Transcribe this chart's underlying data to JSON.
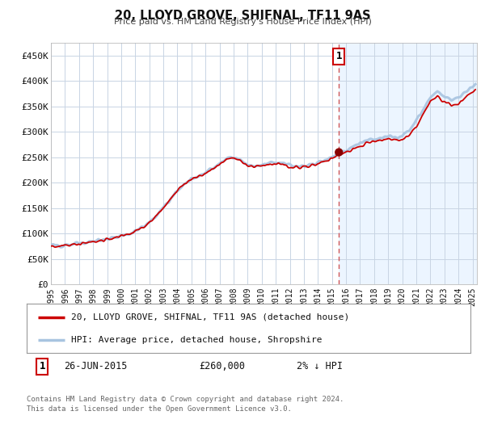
{
  "title": "20, LLOYD GROVE, SHIFNAL, TF11 9AS",
  "subtitle": "Price paid vs. HM Land Registry's House Price Index (HPI)",
  "legend_line1": "20, LLOYD GROVE, SHIFNAL, TF11 9AS (detached house)",
  "legend_line2": "HPI: Average price, detached house, Shropshire",
  "annotation_label": "1",
  "annotation_date": "26-JUN-2015",
  "annotation_price": "£260,000",
  "annotation_hpi": "2% ↓ HPI",
  "footer1": "Contains HM Land Registry data © Crown copyright and database right 2024.",
  "footer2": "This data is licensed under the Open Government Licence v3.0.",
  "sale_date": 2015.49,
  "sale_price": 260000,
  "hpi_line_color": "#a8c4e0",
  "price_line_color": "#cc0000",
  "sale_dot_color": "#880000",
  "annotation_box_color": "#cc0000",
  "vline_color": "#cc4444",
  "background_color": "#ffffff",
  "plot_bg_color": "#ffffff",
  "plot_bg_right_color": "#ddeeff",
  "grid_color": "#c8d4e4",
  "ylim": [
    0,
    475000
  ],
  "xlim_start": 1995.0,
  "xlim_end": 2025.3,
  "yticks": [
    0,
    50000,
    100000,
    150000,
    200000,
    250000,
    300000,
    350000,
    400000,
    450000
  ],
  "ytick_labels": [
    "£0",
    "£50K",
    "£100K",
    "£150K",
    "£200K",
    "£250K",
    "£300K",
    "£350K",
    "£400K",
    "£450K"
  ],
  "xticks": [
    1995,
    1996,
    1997,
    1998,
    1999,
    2000,
    2001,
    2002,
    2003,
    2004,
    2005,
    2006,
    2007,
    2008,
    2009,
    2010,
    2011,
    2012,
    2013,
    2014,
    2015,
    2016,
    2017,
    2018,
    2019,
    2020,
    2021,
    2022,
    2023,
    2024,
    2025
  ]
}
